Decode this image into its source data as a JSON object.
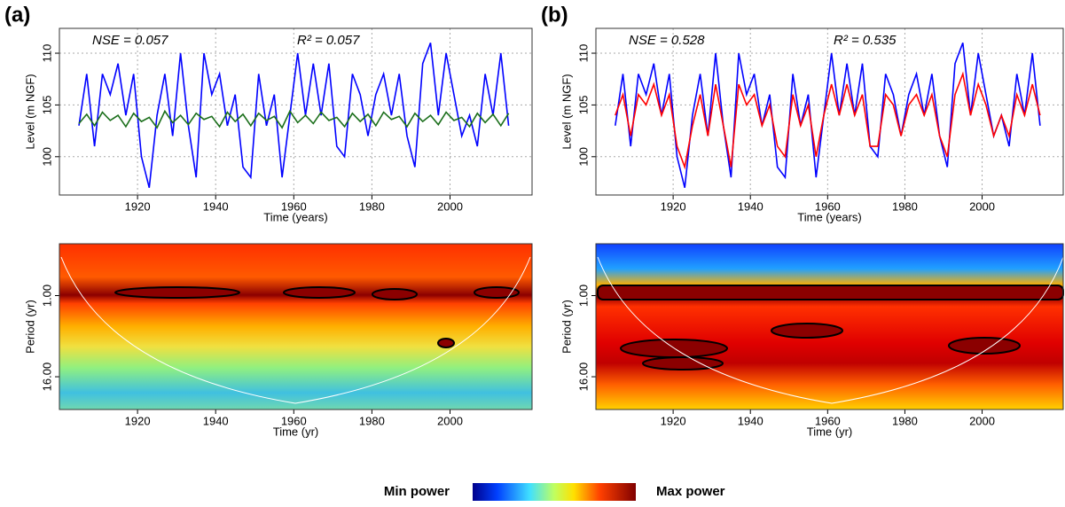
{
  "chart_data": [
    {
      "type": "line",
      "panel": "(a)",
      "annotations": [
        "NSE = 0.057",
        "R² = 0.057"
      ],
      "ylabel": "Level (m NGF)",
      "xlabel": "Time (years)",
      "xlim": [
        1900,
        2021
      ],
      "xticks": [
        1920,
        1940,
        1960,
        1980,
        2000
      ],
      "ylim": [
        96.3,
        112.4
      ],
      "yticks": [
        100,
        105,
        110
      ],
      "grid": true,
      "x": [
        1905,
        1907,
        1909,
        1911,
        1913,
        1915,
        1917,
        1919,
        1921,
        1923,
        1925,
        1927,
        1929,
        1931,
        1933,
        1935,
        1937,
        1939,
        1941,
        1943,
        1945,
        1947,
        1949,
        1951,
        1953,
        1955,
        1957,
        1959,
        1961,
        1963,
        1965,
        1967,
        1969,
        1971,
        1973,
        1975,
        1977,
        1979,
        1981,
        1983,
        1985,
        1987,
        1989,
        1991,
        1993,
        1995,
        1997,
        1999,
        2001,
        2003,
        2005,
        2007,
        2009,
        2011,
        2013,
        2015
      ],
      "series": [
        {
          "color": "#0000ff",
          "values": [
            103,
            108,
            101,
            108,
            106,
            109,
            104,
            108,
            100,
            97,
            104,
            108,
            102,
            110,
            103,
            98,
            110,
            106,
            108,
            103,
            106,
            99,
            98,
            108,
            103,
            106,
            98,
            104,
            110,
            104,
            109,
            104,
            109,
            101,
            100,
            108,
            106,
            102,
            106,
            108,
            104,
            108,
            102,
            99,
            109,
            111,
            104,
            110,
            106,
            102,
            104,
            101,
            108,
            104,
            110,
            103
          ]
        },
        {
          "color": "#1a6e1a",
          "values": [
            103.2,
            104.1,
            103.0,
            104.3,
            103.5,
            104.0,
            102.9,
            104.2,
            103.4,
            103.8,
            102.8,
            104.4,
            103.3,
            104.0,
            103.1,
            104.2,
            103.6,
            103.9,
            102.9,
            104.3,
            103.4,
            104.1,
            103.0,
            104.2,
            103.5,
            103.9,
            102.8,
            104.4,
            103.3,
            104.0,
            103.2,
            104.3,
            103.5,
            103.8,
            102.9,
            104.2,
            103.4,
            104.1,
            103.0,
            104.3,
            103.6,
            103.9,
            102.9,
            104.2,
            103.4,
            104.0,
            103.1,
            104.3,
            103.5,
            103.8,
            102.9,
            104.2,
            103.3,
            104.1,
            103.0,
            104.2
          ]
        }
      ]
    },
    {
      "type": "line",
      "panel": "(b)",
      "annotations": [
        "NSE = 0.528",
        "R² = 0.535"
      ],
      "ylabel": "Level (m NGF)",
      "xlabel": "Time (years)",
      "xlim": [
        1900,
        2021
      ],
      "xticks": [
        1920,
        1940,
        1960,
        1980,
        2000
      ],
      "ylim": [
        96.3,
        112.4
      ],
      "yticks": [
        100,
        105,
        110
      ],
      "grid": true,
      "x": [
        1905,
        1907,
        1909,
        1911,
        1913,
        1915,
        1917,
        1919,
        1921,
        1923,
        1925,
        1927,
        1929,
        1931,
        1933,
        1935,
        1937,
        1939,
        1941,
        1943,
        1945,
        1947,
        1949,
        1951,
        1953,
        1955,
        1957,
        1959,
        1961,
        1963,
        1965,
        1967,
        1969,
        1971,
        1973,
        1975,
        1977,
        1979,
        1981,
        1983,
        1985,
        1987,
        1989,
        1991,
        1993,
        1995,
        1997,
        1999,
        2001,
        2003,
        2005,
        2007,
        2009,
        2011,
        2013,
        2015
      ],
      "series": [
        {
          "color": "#0000ff",
          "values": [
            103,
            108,
            101,
            108,
            106,
            109,
            104,
            108,
            100,
            97,
            104,
            108,
            102,
            110,
            103,
            98,
            110,
            106,
            108,
            103,
            106,
            99,
            98,
            108,
            103,
            106,
            98,
            104,
            110,
            104,
            109,
            104,
            109,
            101,
            100,
            108,
            106,
            102,
            106,
            108,
            104,
            108,
            102,
            99,
            109,
            111,
            104,
            110,
            106,
            102,
            104,
            101,
            108,
            104,
            110,
            103
          ]
        },
        {
          "color": "#ff0000",
          "values": [
            104,
            106,
            102,
            106,
            105,
            107,
            104,
            106,
            101,
            99,
            103,
            106,
            102,
            107,
            103,
            99,
            107,
            105,
            106,
            103,
            105,
            101,
            100,
            106,
            103,
            105,
            100,
            104,
            107,
            104,
            107,
            104,
            106,
            101,
            101,
            106,
            105,
            102,
            105,
            106,
            104,
            106,
            102,
            100,
            106,
            108,
            104,
            107,
            105,
            102,
            104,
            102,
            106,
            104,
            107,
            104
          ]
        }
      ]
    },
    {
      "type": "wavelet",
      "ylabel": "Period (yr)",
      "xlabel": "Time (yr)",
      "xlim": [
        1900,
        2021
      ],
      "xticks": [
        1920,
        1940,
        1960,
        1980,
        2000
      ],
      "ylim": [
        0.17,
        49
      ],
      "log_y": true,
      "yticks": [
        {
          "value": 1,
          "label": "1.00"
        },
        {
          "value": 16,
          "label": "16.00"
        }
      ],
      "scheme": "a"
    },
    {
      "type": "wavelet",
      "ylabel": "Period (yr)",
      "xlabel": "Time (yr)",
      "xlim": [
        1900,
        2021
      ],
      "xticks": [
        1920,
        1940,
        1960,
        1980,
        2000
      ],
      "ylim": [
        0.17,
        49
      ],
      "log_y": true,
      "yticks": [
        {
          "value": 1,
          "label": "1.00"
        },
        {
          "value": 16,
          "label": "16.00"
        }
      ],
      "scheme": "b"
    }
  ],
  "colorbar": {
    "min_label": "Min power",
    "max_label": "Max power"
  }
}
